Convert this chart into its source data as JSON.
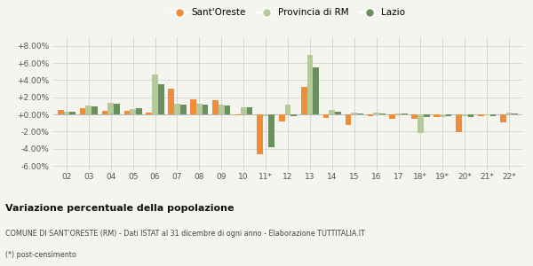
{
  "categories": [
    "02",
    "03",
    "04",
    "05",
    "06",
    "07",
    "08",
    "09",
    "10",
    "11*",
    "12",
    "13",
    "14",
    "15",
    "16",
    "17",
    "18*",
    "19*",
    "20*",
    "21*",
    "22*"
  ],
  "sant_oreste": [
    0.5,
    0.7,
    0.4,
    0.45,
    0.2,
    3.0,
    1.8,
    1.7,
    -0.05,
    -4.6,
    -0.8,
    3.2,
    -0.4,
    -1.2,
    -0.15,
    -0.5,
    -0.5,
    -0.3,
    -2.1,
    -0.2,
    -0.9
  ],
  "provincia_rm": [
    0.35,
    1.05,
    1.35,
    0.65,
    4.7,
    1.2,
    1.2,
    1.15,
    0.85,
    -0.15,
    1.1,
    6.9,
    0.5,
    0.2,
    0.25,
    0.1,
    -2.2,
    -0.3,
    -0.2,
    -0.1,
    0.2
  ],
  "lazio": [
    0.3,
    0.95,
    1.2,
    0.75,
    3.5,
    1.1,
    1.1,
    1.0,
    0.8,
    -3.8,
    -0.15,
    5.5,
    0.35,
    0.15,
    0.15,
    0.1,
    -0.25,
    -0.2,
    -0.3,
    -0.2,
    0.15
  ],
  "color_sant_oreste": "#f28c38",
  "color_provincia": "#b5c99a",
  "color_lazio": "#6b8f5e",
  "ylim": [
    -6.5,
    9.0
  ],
  "yticks": [
    -6.0,
    -4.0,
    -2.0,
    0.0,
    2.0,
    4.0,
    6.0,
    8.0
  ],
  "title": "Variazione percentuale della popolazione",
  "subtitle": "COMUNE DI SANT'ORESTE (RM) - Dati ISTAT al 31 dicembre di ogni anno - Elaborazione TUTTITALIA.IT",
  "footnote": "(*) post-censimento",
  "legend_labels": [
    "Sant'Oreste",
    "Provincia di RM",
    "Lazio"
  ],
  "background_color": "#f5f5f0"
}
